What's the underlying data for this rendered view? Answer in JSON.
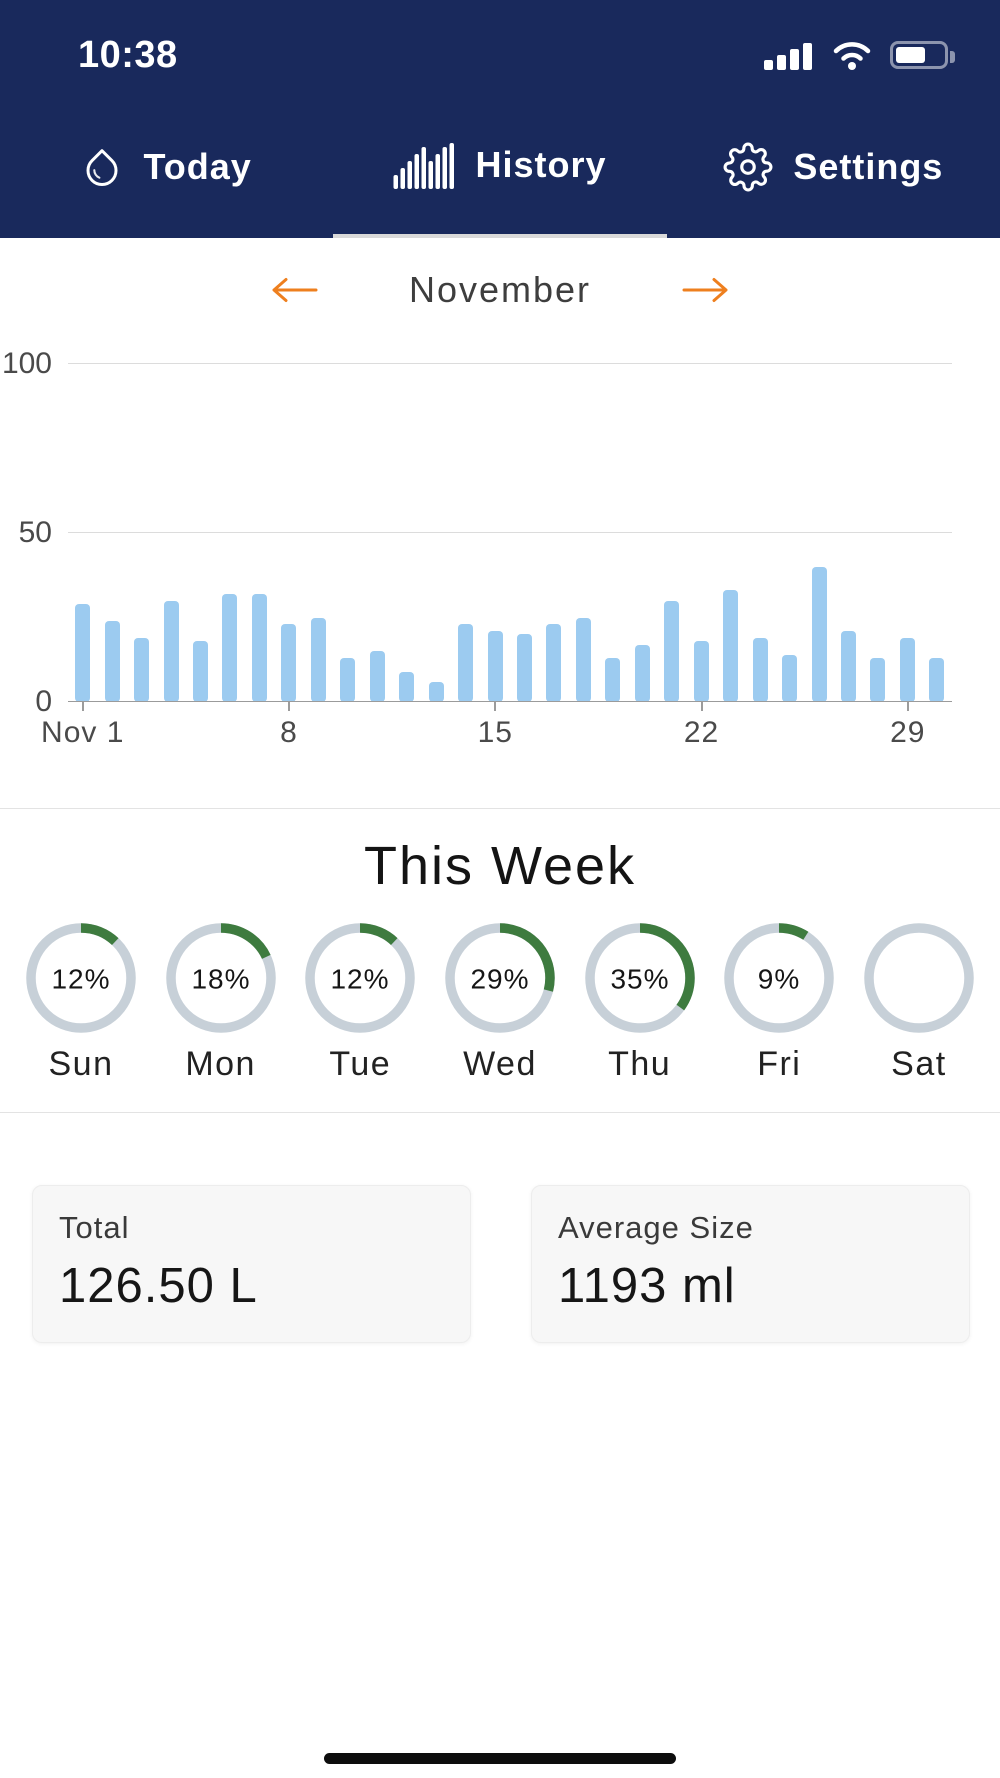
{
  "status_bar": {
    "time": "10:38"
  },
  "nav": {
    "tabs": [
      {
        "label": "Today",
        "icon": "water-drop-icon",
        "active": false
      },
      {
        "label": "History",
        "icon": "bar-chart-icon",
        "active": true
      },
      {
        "label": "Settings",
        "icon": "gear-icon",
        "active": false
      }
    ]
  },
  "month_nav": {
    "month": "November",
    "prev_icon": "arrow-left-icon",
    "next_icon": "arrow-right-icon"
  },
  "chart_data": {
    "type": "bar",
    "title": "November",
    "x": [
      1,
      2,
      3,
      4,
      5,
      6,
      7,
      8,
      9,
      10,
      11,
      12,
      13,
      14,
      15,
      16,
      17,
      18,
      19,
      20,
      21,
      22,
      23,
      24,
      25,
      26,
      27,
      28,
      29,
      30
    ],
    "values": [
      29,
      24,
      19,
      30,
      18,
      32,
      32,
      23,
      25,
      13,
      15,
      9,
      6,
      23,
      21,
      20,
      23,
      25,
      13,
      17,
      30,
      18,
      33,
      19,
      14,
      40,
      21,
      13,
      19,
      13
    ],
    "xlabel": "",
    "ylabel": "",
    "ylim": [
      0,
      100
    ],
    "yticks": [
      0,
      50,
      100
    ],
    "xticks": [
      {
        "index": 0,
        "label": "Nov 1"
      },
      {
        "index": 7,
        "label": "8"
      },
      {
        "index": 14,
        "label": "15"
      },
      {
        "index": 21,
        "label": "22"
      },
      {
        "index": 28,
        "label": "29"
      }
    ],
    "bar_color": "#9CCBF0",
    "grid": true,
    "legend": false
  },
  "this_week": {
    "title": "This Week",
    "days": [
      {
        "label": "Sun",
        "pct": 12
      },
      {
        "label": "Mon",
        "pct": 18
      },
      {
        "label": "Tue",
        "pct": 12
      },
      {
        "label": "Wed",
        "pct": 29
      },
      {
        "label": "Thu",
        "pct": 35
      },
      {
        "label": "Fri",
        "pct": 9
      },
      {
        "label": "Sat",
        "pct": 0
      }
    ]
  },
  "stats": {
    "total": {
      "label": "Total",
      "value": "126.50 L"
    },
    "average": {
      "label": "Average Size",
      "value": "1193 ml"
    }
  },
  "colors": {
    "header_navy": "#19295C",
    "accent_orange": "#EE7F1E",
    "bar_blue": "#9CCBF0",
    "ring_green": "#3E7B3F",
    "ring_track": "#C7D0D8"
  }
}
